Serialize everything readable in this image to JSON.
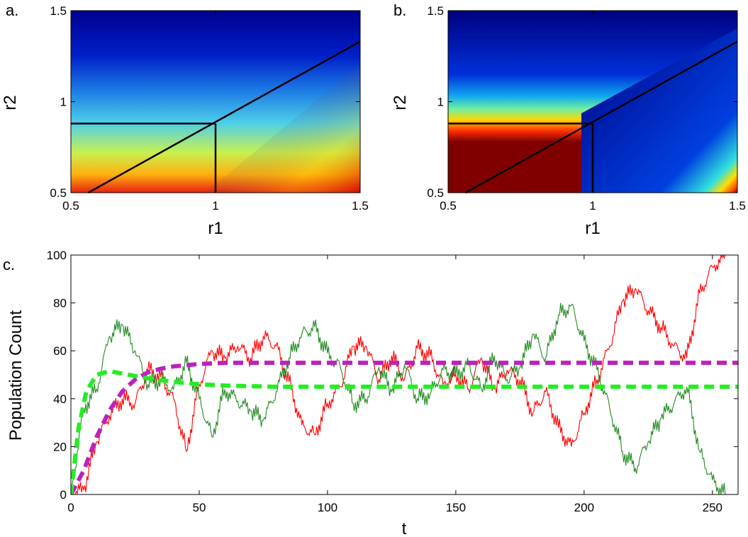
{
  "panels": {
    "a": {
      "label": "a."
    },
    "b": {
      "label": "b."
    },
    "c": {
      "label": "c."
    }
  },
  "chart_data": [
    {
      "type": "heatmap",
      "panel_label": "a.",
      "xlabel": "r1",
      "ylabel": "r2",
      "xlim": [
        0.5,
        1.5
      ],
      "ylim": [
        0.5,
        1.5
      ],
      "xticks": [
        "0.5",
        "1",
        "1.5"
      ],
      "yticks": [
        "0.5",
        "1",
        "1.5"
      ],
      "colormap": "jet",
      "overlay_lines": [
        {
          "points": [
            [
              0.5,
              0.88
            ],
            [
              1.0,
              0.88
            ]
          ]
        },
        {
          "points": [
            [
              1.0,
              0.88
            ],
            [
              1.0,
              0.5
            ]
          ]
        },
        {
          "points": [
            [
              0.56,
              0.5
            ],
            [
              1.5,
              1.33
            ]
          ]
        }
      ]
    },
    {
      "type": "heatmap",
      "panel_label": "b.",
      "xlabel": "r1",
      "ylabel": "r2",
      "xlim": [
        0.5,
        1.5
      ],
      "ylim": [
        0.5,
        1.5
      ],
      "xticks": [
        "0.5",
        "1",
        "1.5"
      ],
      "yticks": [
        "0.5",
        "1",
        "1.5"
      ],
      "colormap": "jet",
      "overlay_lines": [
        {
          "points": [
            [
              0.5,
              0.88
            ],
            [
              1.0,
              0.88
            ]
          ]
        },
        {
          "points": [
            [
              1.0,
              0.88
            ],
            [
              1.0,
              0.5
            ]
          ]
        },
        {
          "points": [
            [
              0.56,
              0.5
            ],
            [
              1.5,
              1.33
            ]
          ]
        }
      ]
    },
    {
      "type": "line",
      "panel_label": "c.",
      "xlabel": "t",
      "ylabel": "Population Count",
      "xlim": [
        0,
        260
      ],
      "ylim": [
        0,
        100
      ],
      "xticks": [
        "0",
        "50",
        "100",
        "150",
        "200",
        "250"
      ],
      "yticks": [
        "0",
        "20",
        "40",
        "60",
        "80",
        "100"
      ],
      "series": [
        {
          "color": "#ff0000",
          "style": "solid",
          "values_tx": [
            [
              0,
              0
            ],
            [
              5,
              2
            ],
            [
              10,
              22
            ],
            [
              15,
              33
            ],
            [
              20,
              40
            ],
            [
              25,
              38
            ],
            [
              30,
              52
            ],
            [
              35,
              49
            ],
            [
              40,
              40
            ],
            [
              45,
              18
            ],
            [
              50,
              46
            ],
            [
              55,
              60
            ],
            [
              60,
              57
            ],
            [
              65,
              62
            ],
            [
              70,
              57
            ],
            [
              75,
              66
            ],
            [
              80,
              62
            ],
            [
              85,
              47
            ],
            [
              90,
              29
            ],
            [
              95,
              25
            ],
            [
              100,
              38
            ],
            [
              105,
              45
            ],
            [
              110,
              62
            ],
            [
              115,
              62
            ],
            [
              120,
              48
            ],
            [
              125,
              58
            ],
            [
              130,
              48
            ],
            [
              135,
              61
            ],
            [
              140,
              58
            ],
            [
              145,
              46
            ],
            [
              150,
              50
            ],
            [
              155,
              44
            ],
            [
              160,
              57
            ],
            [
              165,
              44
            ],
            [
              170,
              52
            ],
            [
              175,
              48
            ],
            [
              180,
              34
            ],
            [
              185,
              43
            ],
            [
              190,
              28
            ],
            [
              195,
              20
            ],
            [
              200,
              34
            ],
            [
              205,
              48
            ],
            [
              210,
              62
            ],
            [
              215,
              81
            ],
            [
              220,
              86
            ],
            [
              225,
              77
            ],
            [
              230,
              70
            ],
            [
              235,
              62
            ],
            [
              240,
              57
            ],
            [
              245,
              84
            ],
            [
              250,
              95
            ],
            [
              255,
              100
            ]
          ]
        },
        {
          "color": "#228b22",
          "style": "solid",
          "values_tx": [
            [
              0,
              0
            ],
            [
              5,
              36
            ],
            [
              10,
              44
            ],
            [
              15,
              66
            ],
            [
              20,
              71
            ],
            [
              25,
              60
            ],
            [
              30,
              46
            ],
            [
              35,
              48
            ],
            [
              40,
              44
            ],
            [
              45,
              55
            ],
            [
              50,
              40
            ],
            [
              55,
              24
            ],
            [
              60,
              44
            ],
            [
              65,
              39
            ],
            [
              70,
              35
            ],
            [
              75,
              31
            ],
            [
              80,
              43
            ],
            [
              85,
              57
            ],
            [
              90,
              67
            ],
            [
              95,
              70
            ],
            [
              100,
              59
            ],
            [
              105,
              53
            ],
            [
              110,
              38
            ],
            [
              115,
              40
            ],
            [
              120,
              53
            ],
            [
              125,
              43
            ],
            [
              130,
              54
            ],
            [
              135,
              40
            ],
            [
              140,
              42
            ],
            [
              145,
              52
            ],
            [
              150,
              50
            ],
            [
              155,
              54
            ],
            [
              160,
              44
            ],
            [
              165,
              58
            ],
            [
              170,
              48
            ],
            [
              175,
              53
            ],
            [
              180,
              67
            ],
            [
              185,
              57
            ],
            [
              190,
              75
            ],
            [
              195,
              79
            ],
            [
              200,
              64
            ],
            [
              205,
              52
            ],
            [
              210,
              36
            ],
            [
              215,
              18
            ],
            [
              220,
              11
            ],
            [
              225,
              22
            ],
            [
              230,
              32
            ],
            [
              235,
              38
            ],
            [
              240,
              45
            ],
            [
              245,
              18
            ],
            [
              250,
              6
            ],
            [
              255,
              0
            ]
          ]
        },
        {
          "color": "#bb22bb",
          "style": "dashed",
          "values_tx": [
            [
              0,
              0
            ],
            [
              5,
              10
            ],
            [
              10,
              24
            ],
            [
              15,
              35
            ],
            [
              20,
              43
            ],
            [
              25,
              48
            ],
            [
              30,
              51
            ],
            [
              35,
              52.5
            ],
            [
              40,
              53.5
            ],
            [
              50,
              54.5
            ],
            [
              60,
              55
            ],
            [
              80,
              55
            ],
            [
              260,
              55
            ]
          ]
        },
        {
          "color": "#22ee22",
          "style": "dashed",
          "values_tx": [
            [
              0,
              0
            ],
            [
              3,
              28
            ],
            [
              6,
              43
            ],
            [
              10,
              50
            ],
            [
              15,
              51.5
            ],
            [
              20,
              50.5
            ],
            [
              30,
              48.5
            ],
            [
              40,
              47
            ],
            [
              50,
              46
            ],
            [
              60,
              45.5
            ],
            [
              80,
              45
            ],
            [
              260,
              45
            ]
          ]
        }
      ]
    }
  ]
}
